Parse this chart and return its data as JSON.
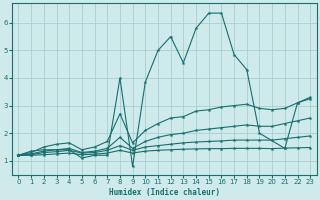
{
  "xlabel": "Humidex (Indice chaleur)",
  "bg_color": "#ceeaea",
  "grid_color": "#aacece",
  "line_color": "#1a6e6e",
  "xlim": [
    -0.5,
    23.5
  ],
  "ylim": [
    0.5,
    6.7
  ],
  "yticks": [
    1,
    2,
    3,
    4,
    5,
    6
  ],
  "xticks": [
    0,
    1,
    2,
    3,
    4,
    5,
    6,
    7,
    8,
    9,
    10,
    11,
    12,
    13,
    14,
    15,
    16,
    17,
    18,
    19,
    20,
    21,
    22,
    23
  ],
  "lines": [
    {
      "x": [
        0,
        1,
        2,
        3,
        4,
        5,
        6,
        7,
        8,
        9,
        10,
        11,
        12,
        13,
        14,
        15,
        16,
        17,
        18,
        19,
        21,
        22,
        23
      ],
      "y": [
        1.2,
        1.35,
        1.4,
        1.4,
        1.4,
        1.1,
        1.2,
        1.2,
        4.0,
        0.8,
        3.85,
        5.0,
        5.5,
        4.55,
        5.8,
        6.35,
        6.35,
        4.85,
        4.3,
        2.0,
        1.45,
        3.1,
        3.3
      ]
    },
    {
      "x": [
        0,
        1,
        2,
        3,
        4,
        5,
        6,
        7,
        8,
        9,
        10,
        11,
        12,
        13,
        14,
        15,
        16,
        17,
        18,
        19,
        20,
        21,
        22,
        23
      ],
      "y": [
        1.2,
        1.3,
        1.5,
        1.6,
        1.65,
        1.4,
        1.5,
        1.7,
        2.7,
        1.65,
        2.1,
        2.35,
        2.55,
        2.6,
        2.8,
        2.85,
        2.95,
        3.0,
        3.05,
        2.9,
        2.85,
        2.9,
        3.1,
        3.25
      ]
    },
    {
      "x": [
        0,
        1,
        2,
        3,
        4,
        5,
        6,
        7,
        8,
        9,
        10,
        11,
        12,
        13,
        14,
        15,
        16,
        17,
        18,
        19,
        20,
        21,
        22,
        23
      ],
      "y": [
        1.2,
        1.25,
        1.35,
        1.4,
        1.45,
        1.3,
        1.35,
        1.45,
        1.85,
        1.45,
        1.7,
        1.85,
        1.95,
        2.0,
        2.1,
        2.15,
        2.2,
        2.25,
        2.3,
        2.25,
        2.25,
        2.35,
        2.45,
        2.55
      ]
    },
    {
      "x": [
        0,
        1,
        2,
        3,
        4,
        5,
        6,
        7,
        8,
        9,
        10,
        11,
        12,
        13,
        14,
        15,
        16,
        17,
        18,
        19,
        20,
        21,
        22,
        23
      ],
      "y": [
        1.2,
        1.22,
        1.3,
        1.33,
        1.38,
        1.28,
        1.3,
        1.38,
        1.55,
        1.38,
        1.5,
        1.55,
        1.6,
        1.65,
        1.68,
        1.7,
        1.72,
        1.75,
        1.75,
        1.75,
        1.75,
        1.8,
        1.85,
        1.9
      ]
    },
    {
      "x": [
        0,
        1,
        2,
        3,
        4,
        5,
        6,
        7,
        8,
        9,
        10,
        11,
        12,
        13,
        14,
        15,
        16,
        17,
        18,
        19,
        20,
        21,
        22,
        23
      ],
      "y": [
        1.2,
        1.2,
        1.22,
        1.25,
        1.28,
        1.22,
        1.24,
        1.28,
        1.38,
        1.28,
        1.35,
        1.38,
        1.4,
        1.42,
        1.43,
        1.44,
        1.44,
        1.45,
        1.45,
        1.45,
        1.44,
        1.46,
        1.47,
        1.48
      ]
    }
  ]
}
